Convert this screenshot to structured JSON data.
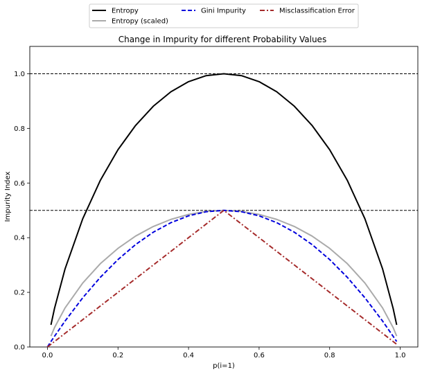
{
  "chart_data": {
    "type": "line",
    "title": "Change in Impurity for different Probability Values",
    "xlabel": "p(i=1)",
    "ylabel": "Impurity Index",
    "xlim": [
      -0.05,
      1.05
    ],
    "ylim": [
      0.0,
      1.1
    ],
    "xticks": [
      "0.0",
      "0.2",
      "0.4",
      "0.6",
      "0.8",
      "1.0"
    ],
    "yticks": [
      "0.0",
      "0.2",
      "0.4",
      "0.6",
      "0.8",
      "1.0"
    ],
    "grid": false,
    "legend_position": "top-center, above plot",
    "hlines": [
      {
        "y": 0.5,
        "style": "dashed",
        "color": "#000000"
      },
      {
        "y": 1.0,
        "style": "dashed",
        "color": "#000000"
      }
    ],
    "x": [
      0.0,
      0.01,
      0.02,
      0.05,
      0.1,
      0.15,
      0.2,
      0.25,
      0.3,
      0.35,
      0.4,
      0.45,
      0.5,
      0.55,
      0.6,
      0.65,
      0.7,
      0.75,
      0.8,
      0.85,
      0.9,
      0.95,
      0.98,
      0.99
    ],
    "series": [
      {
        "name": "Entropy",
        "color": "#000000",
        "dash": "solid",
        "width": 2,
        "values": [
          null,
          0.081,
          0.141,
          0.286,
          0.469,
          0.61,
          0.722,
          0.811,
          0.881,
          0.934,
          0.971,
          0.993,
          1.0,
          0.993,
          0.971,
          0.934,
          0.881,
          0.811,
          0.722,
          0.61,
          0.469,
          0.286,
          0.141,
          0.081
        ]
      },
      {
        "name": "Entropy (scaled)",
        "color": "#aaaaaa",
        "dash": "solid",
        "width": 2,
        "values": [
          null,
          0.04,
          0.071,
          0.143,
          0.234,
          0.305,
          0.361,
          0.406,
          0.441,
          0.467,
          0.485,
          0.496,
          0.5,
          0.496,
          0.485,
          0.467,
          0.441,
          0.406,
          0.361,
          0.305,
          0.234,
          0.143,
          0.071,
          0.04
        ]
      },
      {
        "name": "Gini Impurity",
        "color": "#0000dd",
        "dash": "dashed",
        "width": 2,
        "values": [
          0.0,
          0.02,
          0.039,
          0.095,
          0.18,
          0.255,
          0.32,
          0.375,
          0.42,
          0.455,
          0.48,
          0.495,
          0.5,
          0.495,
          0.48,
          0.455,
          0.42,
          0.375,
          0.32,
          0.255,
          0.18,
          0.095,
          0.039,
          0.02
        ]
      },
      {
        "name": "Misclassification Error",
        "color": "#a52a2a",
        "dash": "dashdot",
        "width": 2,
        "values": [
          0.0,
          0.01,
          0.02,
          0.05,
          0.1,
          0.15,
          0.2,
          0.25,
          0.3,
          0.35,
          0.4,
          0.45,
          0.5,
          0.45,
          0.4,
          0.35,
          0.3,
          0.25,
          0.2,
          0.15,
          0.1,
          0.05,
          0.02,
          0.01
        ]
      }
    ]
  }
}
